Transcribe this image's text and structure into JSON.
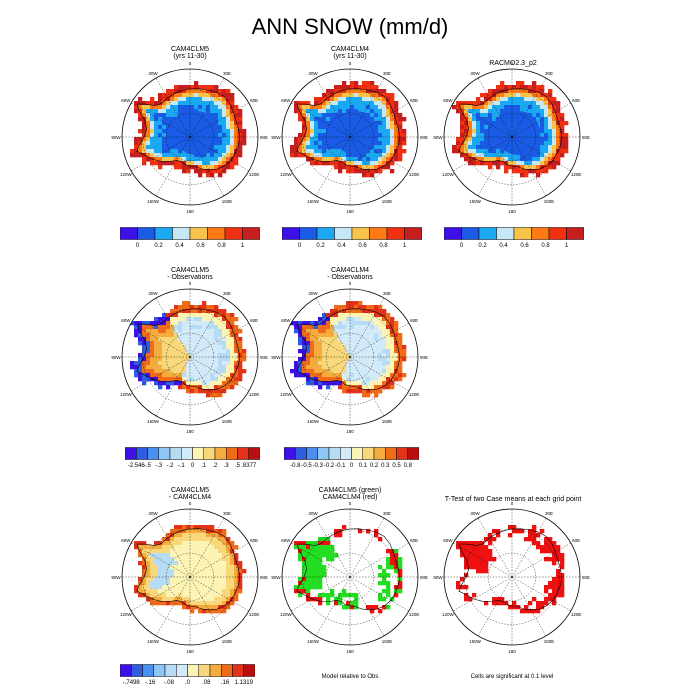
{
  "title": "ANN SNOW (mm/d)",
  "colors": {
    "seq": [
      "#3e10e8",
      "#1a5be5",
      "#1aa9f0",
      "#c6e7f6",
      "#f8c34a",
      "#ff7a14",
      "#f03010",
      "#c41e1e"
    ],
    "diff": [
      "#3e10e8",
      "#2f5de0",
      "#4b8ff0",
      "#8ec6f5",
      "#b6dcf5",
      "#d3eaf8",
      "#fbf4b4",
      "#f8d87a",
      "#f5ac3e",
      "#f06b18",
      "#e2321a",
      "#b81010"
    ],
    "sig_green": "#22dd22",
    "sig_red": "#ee1111"
  },
  "panels": [
    {
      "id": "p1",
      "title_lines": [
        "CAM4CLM5",
        "(yrs 11-30)"
      ],
      "kind": "field",
      "lon_labels": [
        "0",
        "30E",
        "60E",
        "90E",
        "120E",
        "150E",
        "180",
        "150W",
        "120W",
        "90W",
        "60W",
        "30W"
      ],
      "colorbar": {
        "scheme": "seq",
        "labels": [
          "0",
          "0.2",
          "0.4",
          "0.6",
          "0.8",
          "1"
        ]
      }
    },
    {
      "id": "p2",
      "title_lines": [
        "CAM4CLM4",
        "(yrs 11-30)"
      ],
      "kind": "field",
      "lon_labels": [
        "0",
        "30E",
        "60E",
        "90E",
        "120E",
        "150E",
        "180",
        "150W",
        "120W",
        "90W",
        "60W",
        "30W"
      ],
      "colorbar": {
        "scheme": "seq",
        "labels": [
          "0",
          "0.2",
          "0.4",
          "0.6",
          "0.8",
          "1"
        ]
      }
    },
    {
      "id": "p3",
      "title_lines": [
        "RACMO2.3_p2"
      ],
      "kind": "field",
      "lon_labels": [
        "0",
        "30E",
        "60E",
        "90E",
        "120E",
        "150E",
        "180",
        "150W",
        "120W",
        "90W",
        "60W",
        "30W"
      ],
      "colorbar": {
        "scheme": "seq",
        "labels": [
          "0",
          "0.2",
          "0.4",
          "0.6",
          "0.8",
          "1"
        ]
      }
    },
    {
      "id": "p4",
      "title_lines": [
        "CAM4CLM5",
        "- Observations"
      ],
      "kind": "diff",
      "lon_labels": [
        "0",
        "30E",
        "60E",
        "90E",
        "120E",
        "150E",
        "180",
        "150W",
        "120W",
        "90W",
        "60W",
        "30W"
      ],
      "colorbar": {
        "scheme": "diff",
        "labels": [
          "-2.546",
          "-.5",
          "-.3",
          "-.2",
          "-.1",
          "0",
          ".1",
          ".2",
          ".3",
          ".5",
          ".8377"
        ]
      }
    },
    {
      "id": "p5",
      "title_lines": [
        "CAM4CLM4",
        "- Observations"
      ],
      "kind": "diff",
      "lon_labels": [
        "0",
        "30E",
        "60E",
        "90E",
        "120E",
        "150E",
        "180",
        "150W",
        "120W",
        "90W",
        "60W",
        "30W"
      ],
      "colorbar": {
        "scheme": "diff",
        "labels": [
          "-0.8",
          "-0.5",
          "-0.3",
          "-0.2",
          "-0.1",
          "0",
          "0.1",
          "0.2",
          "0.3",
          "0.5",
          "0.8"
        ]
      }
    },
    {
      "id": "p6",
      "title_lines": [
        "CAM4CLM5",
        "- CAM4CLM4"
      ],
      "kind": "diff3",
      "lon_labels": [
        "0",
        "30E",
        "60E",
        "90E",
        "120E",
        "150E",
        "180",
        "150W",
        "120W",
        "90W",
        "60W",
        "30W"
      ],
      "colorbar": {
        "scheme": "diff",
        "labels": [
          "-.7498",
          "-.16",
          "-.08",
          ".0",
          ".08",
          ".16",
          "1.1319"
        ]
      }
    },
    {
      "id": "p7",
      "title_lines": [
        "CAM4CLM5 (green)",
        "CAM4CLM4 (red)"
      ],
      "kind": "sig2",
      "lon_labels": [
        "0",
        "30E",
        "60E",
        "90E",
        "120E",
        "150E",
        "180",
        "150W",
        "120W",
        "90W",
        "60W",
        "30W"
      ],
      "footnote": "Model relative to Obs"
    },
    {
      "id": "p8",
      "title_lines": [
        "T-Test of two Case means at each grid point"
      ],
      "kind": "sig1",
      "lon_labels": [
        "0",
        "30E",
        "60E",
        "90E",
        "120E",
        "150E",
        "180",
        "150W",
        "120W",
        "90W",
        "60W",
        "30W"
      ],
      "footnote": "Cells are significant at 0.1 level"
    }
  ]
}
